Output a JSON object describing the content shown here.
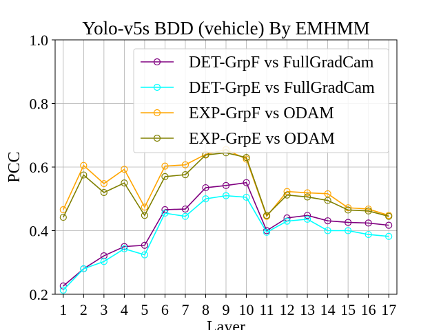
{
  "chart_data": {
    "type": "line",
    "title": "Yolo-v5s BDD (vehicle) By EMHMM",
    "xlabel": "Layer",
    "ylabel": "PCC",
    "x": [
      1,
      2,
      3,
      4,
      5,
      6,
      7,
      8,
      9,
      10,
      11,
      12,
      13,
      14,
      15,
      16,
      17
    ],
    "xlim": [
      0.6,
      17.4
    ],
    "ylim": [
      0.2,
      1.0
    ],
    "yticks": [
      "0.2",
      "0.4",
      "0.6",
      "0.8",
      "1.0"
    ],
    "grid": true,
    "legend_position": "upper-right",
    "marker": "open-circle",
    "series": [
      {
        "name": "DET-GrpF vs FullGradCam",
        "color": "#800080",
        "values": [
          0.226,
          0.28,
          0.321,
          0.35,
          0.354,
          0.466,
          0.468,
          0.535,
          0.542,
          0.551,
          0.4,
          0.44,
          0.448,
          0.431,
          0.426,
          0.424,
          0.417
        ]
      },
      {
        "name": "DET-GrpE vs FullGradCam",
        "color": "#00ffff",
        "values": [
          0.213,
          0.28,
          0.303,
          0.343,
          0.324,
          0.455,
          0.445,
          0.5,
          0.51,
          0.505,
          0.395,
          0.43,
          0.436,
          0.4,
          0.4,
          0.388,
          0.382
        ]
      },
      {
        "name": "EXP-GrpF vs ODAM",
        "color": "#ffa500",
        "values": [
          0.466,
          0.605,
          0.548,
          0.593,
          0.474,
          0.603,
          0.607,
          0.64,
          0.655,
          0.625,
          0.445,
          0.523,
          0.519,
          0.516,
          0.472,
          0.468,
          0.448
        ]
      },
      {
        "name": "EXP-GrpE vs ODAM",
        "color": "#808000",
        "values": [
          0.442,
          0.575,
          0.52,
          0.55,
          0.448,
          0.57,
          0.576,
          0.638,
          0.645,
          0.63,
          0.448,
          0.512,
          0.506,
          0.495,
          0.465,
          0.462,
          0.445
        ]
      }
    ]
  }
}
